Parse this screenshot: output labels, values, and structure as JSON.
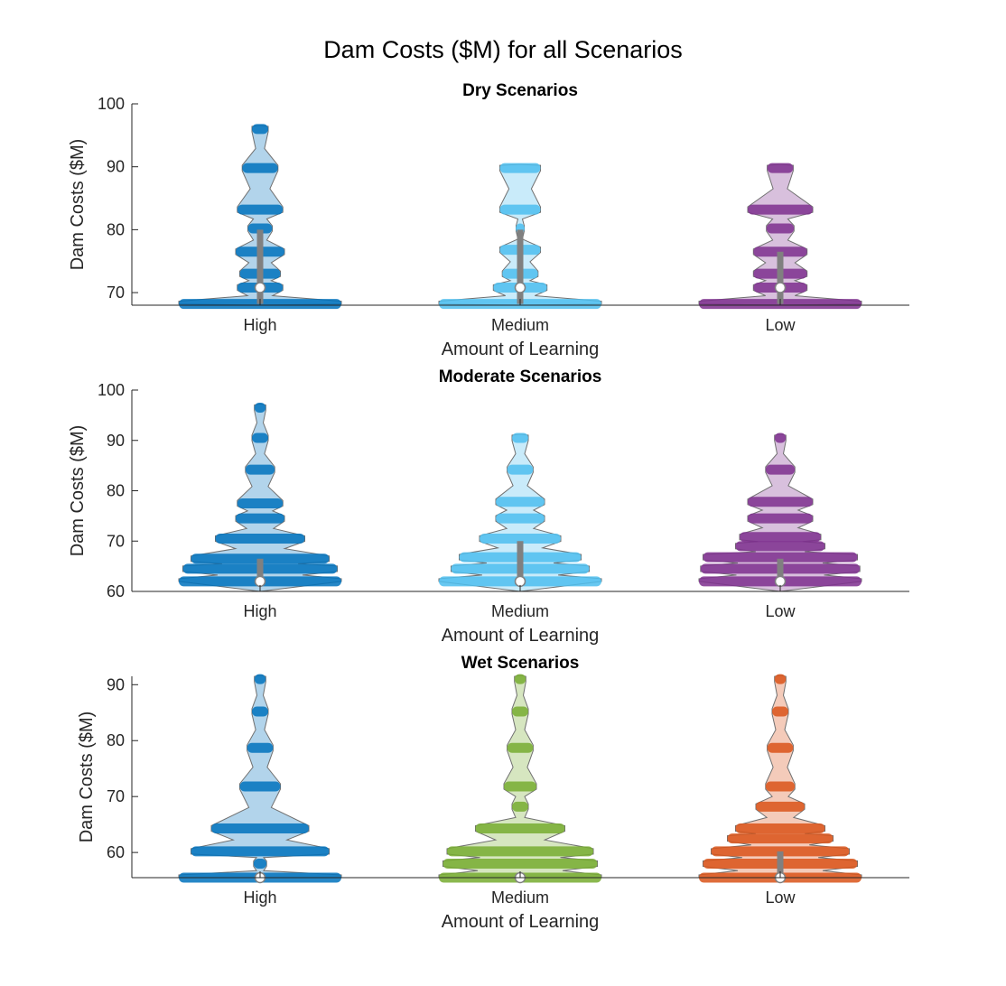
{
  "title": "Dam Costs ($M) for all Scenarios",
  "colors": {
    "high": "#0072BD",
    "medium": "#4DBEEE",
    "low_dry": "#7E2F8E",
    "medium_wet": "#77AC30",
    "low_wet": "#D95319",
    "box": "#808080",
    "axis": "#262626"
  },
  "chart_data": [
    {
      "type": "violin",
      "title": "Dry Scenarios",
      "xlabel": "Amount of Learning",
      "ylabel": "Dam Costs ($M)",
      "categories": [
        "High",
        "Medium",
        "Low"
      ],
      "ylim": [
        68,
        100
      ],
      "yticks": [
        70,
        80,
        90,
        100
      ],
      "series": [
        {
          "category": "High",
          "median": 70.8,
          "q1": 68.2,
          "q3": 80,
          "levels": [
            {
              "y": 68.2,
              "w": 1.0
            },
            {
              "y": 70.8,
              "w": 0.28
            },
            {
              "y": 73,
              "w": 0.25
            },
            {
              "y": 76.5,
              "w": 0.3
            },
            {
              "y": 80.2,
              "w": 0.15
            },
            {
              "y": 83.2,
              "w": 0.28
            },
            {
              "y": 89.8,
              "w": 0.22
            },
            {
              "y": 96,
              "w": 0.1
            }
          ]
        },
        {
          "category": "Medium",
          "median": 70.8,
          "q1": 68.2,
          "q3": 80,
          "levels": [
            {
              "y": 68.2,
              "w": 1.0
            },
            {
              "y": 70.8,
              "w": 0.33
            },
            {
              "y": 73,
              "w": 0.22
            },
            {
              "y": 76.8,
              "w": 0.25
            },
            {
              "y": 80.2,
              "w": 0.05
            },
            {
              "y": 83.2,
              "w": 0.25
            },
            {
              "y": 89.8,
              "w": 0.25
            }
          ]
        },
        {
          "category": "Low",
          "median": 70.8,
          "q1": 68.2,
          "q3": 76.5,
          "levels": [
            {
              "y": 68.2,
              "w": 1.0
            },
            {
              "y": 70.8,
              "w": 0.33
            },
            {
              "y": 73,
              "w": 0.33
            },
            {
              "y": 76.5,
              "w": 0.33
            },
            {
              "y": 80.2,
              "w": 0.17
            },
            {
              "y": 83.2,
              "w": 0.4
            },
            {
              "y": 89.8,
              "w": 0.16
            }
          ]
        }
      ]
    },
    {
      "type": "violin",
      "title": "Moderate Scenarios",
      "xlabel": "Amount of Learning",
      "ylabel": "Dam Costs ($M)",
      "categories": [
        "High",
        "Medium",
        "Low"
      ],
      "ylim": [
        60,
        100
      ],
      "yticks": [
        60,
        70,
        80,
        90,
        100
      ],
      "series": [
        {
          "category": "High",
          "median": 62,
          "q1": 62,
          "q3": 66.5,
          "levels": [
            {
              "y": 62,
              "w": 1.0
            },
            {
              "y": 64.5,
              "w": 0.95
            },
            {
              "y": 66.5,
              "w": 0.85
            },
            {
              "y": 70.5,
              "w": 0.55
            },
            {
              "y": 74.5,
              "w": 0.3
            },
            {
              "y": 77.5,
              "w": 0.28
            },
            {
              "y": 84.2,
              "w": 0.18
            },
            {
              "y": 90.5,
              "w": 0.1
            },
            {
              "y": 96.5,
              "w": 0.07
            }
          ]
        },
        {
          "category": "Medium",
          "median": 62,
          "q1": 62,
          "q3": 70,
          "levels": [
            {
              "y": 62,
              "w": 1.0
            },
            {
              "y": 64.5,
              "w": 0.85
            },
            {
              "y": 66.8,
              "w": 0.75
            },
            {
              "y": 70.5,
              "w": 0.5
            },
            {
              "y": 74.5,
              "w": 0.3
            },
            {
              "y": 77.8,
              "w": 0.3
            },
            {
              "y": 84.2,
              "w": 0.16
            },
            {
              "y": 90.5,
              "w": 0.1
            }
          ]
        },
        {
          "category": "Low",
          "median": 62,
          "q1": 62,
          "q3": 66.5,
          "levels": [
            {
              "y": 62,
              "w": 1.0
            },
            {
              "y": 64.5,
              "w": 0.98
            },
            {
              "y": 66.8,
              "w": 0.95
            },
            {
              "y": 69,
              "w": 0.55
            },
            {
              "y": 70.8,
              "w": 0.5
            },
            {
              "y": 74.5,
              "w": 0.4
            },
            {
              "y": 77.8,
              "w": 0.4
            },
            {
              "y": 84.2,
              "w": 0.18
            },
            {
              "y": 90.5,
              "w": 0.07
            }
          ]
        }
      ]
    },
    {
      "type": "violin",
      "title": "Wet Scenarios",
      "xlabel": "Amount of Learning",
      "ylabel": "Dam Costs ($M)",
      "categories": [
        "High",
        "Medium",
        "Low"
      ],
      "ylim": [
        55.5,
        91.5
      ],
      "yticks": [
        60,
        70,
        80,
        90
      ],
      "series": [
        {
          "category": "High",
          "median": 55.5,
          "q1": 55.5,
          "q3": 55.5,
          "levels": [
            {
              "y": 55.5,
              "w": 1.0
            },
            {
              "y": 58,
              "w": 0.08
            },
            {
              "y": 60.2,
              "w": 0.85
            },
            {
              "y": 64.3,
              "w": 0.6
            },
            {
              "y": 71.8,
              "w": 0.25
            },
            {
              "y": 78.7,
              "w": 0.16
            },
            {
              "y": 85.2,
              "w": 0.1
            },
            {
              "y": 91,
              "w": 0.07
            }
          ]
        },
        {
          "category": "Medium",
          "median": 55.5,
          "q1": 55.5,
          "q3": 55.5,
          "levels": [
            {
              "y": 55.5,
              "w": 1.0
            },
            {
              "y": 58,
              "w": 0.95
            },
            {
              "y": 60.2,
              "w": 0.9
            },
            {
              "y": 64.3,
              "w": 0.55
            },
            {
              "y": 68.2,
              "w": 0.1
            },
            {
              "y": 71.8,
              "w": 0.2
            },
            {
              "y": 78.7,
              "w": 0.16
            },
            {
              "y": 85.2,
              "w": 0.1
            },
            {
              "y": 91,
              "w": 0.07
            }
          ]
        },
        {
          "category": "Low",
          "median": 55.5,
          "q1": 55.5,
          "q3": 60.2,
          "levels": [
            {
              "y": 55.5,
              "w": 1.0
            },
            {
              "y": 58,
              "w": 0.95
            },
            {
              "y": 60.2,
              "w": 0.85
            },
            {
              "y": 62.5,
              "w": 0.65
            },
            {
              "y": 64.3,
              "w": 0.55
            },
            {
              "y": 68.2,
              "w": 0.3
            },
            {
              "y": 71.8,
              "w": 0.18
            },
            {
              "y": 78.7,
              "w": 0.16
            },
            {
              "y": 85.2,
              "w": 0.1
            },
            {
              "y": 91,
              "w": 0.07
            }
          ]
        }
      ]
    }
  ]
}
